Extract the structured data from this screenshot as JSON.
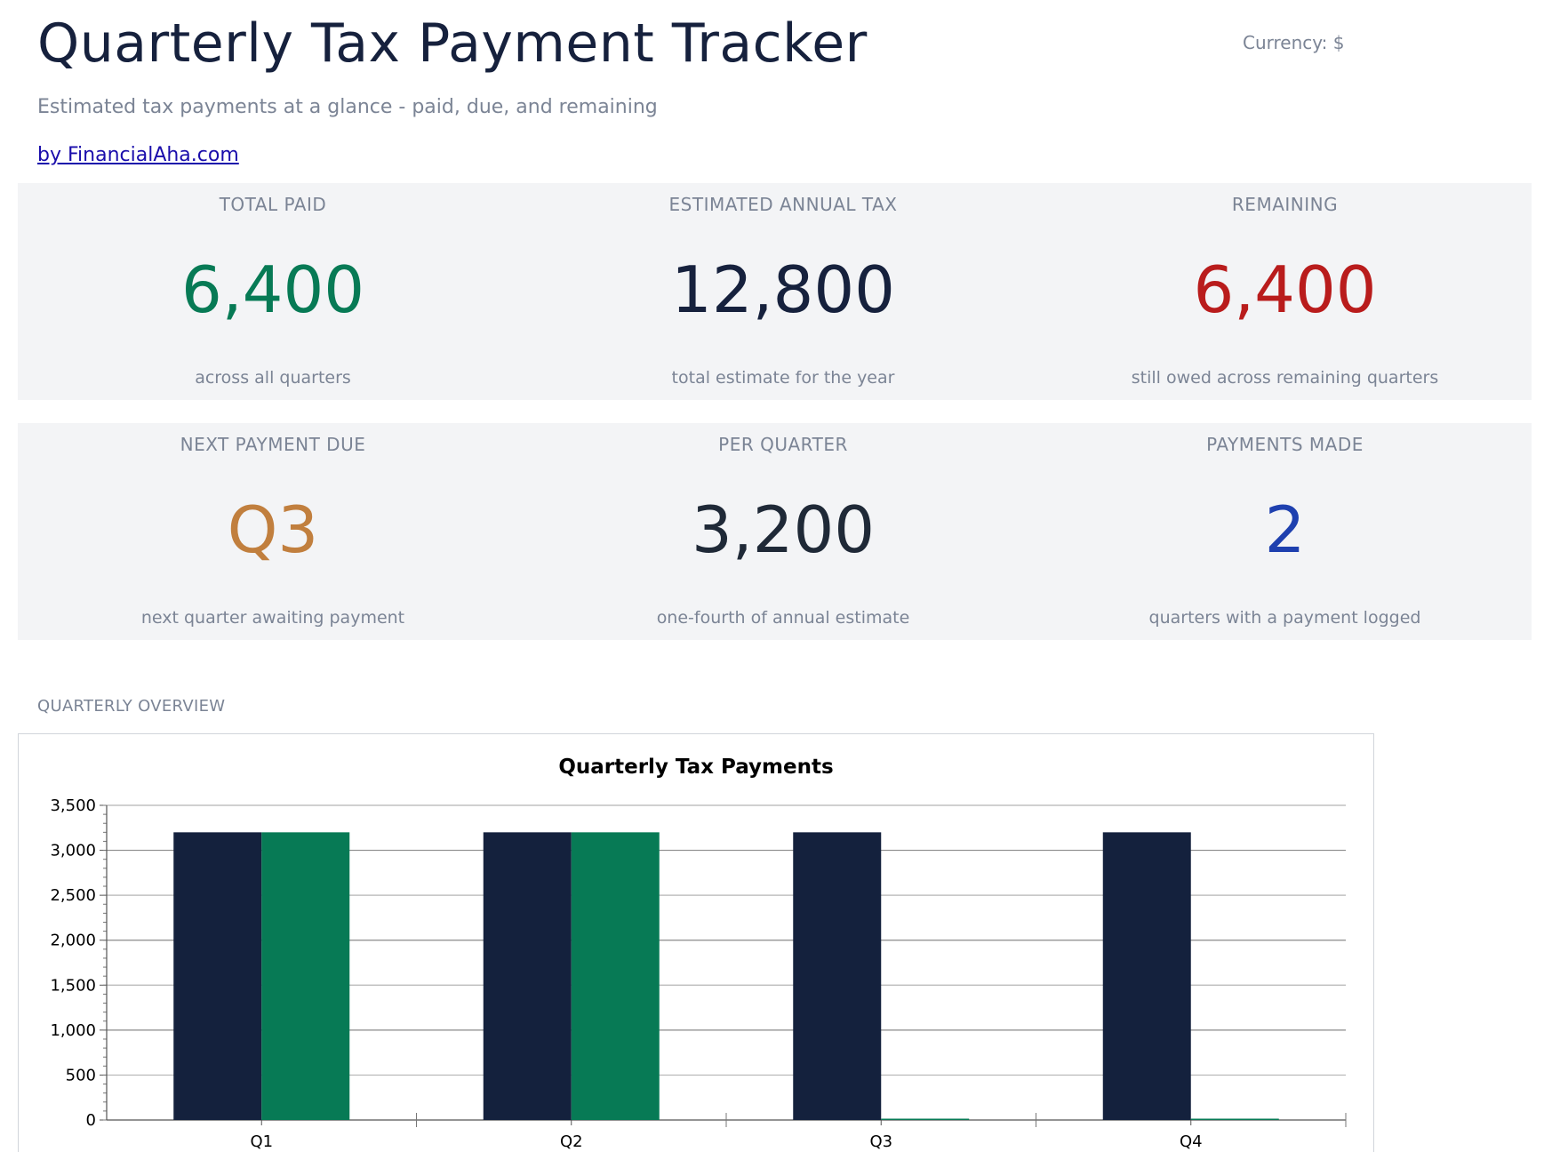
{
  "header": {
    "title": "Quarterly Tax Payment Tracker",
    "currency": "Currency: $",
    "subtitle": "Estimated tax payments at a glance - paid, due, and remaining",
    "byline": "by FinancialAha.com"
  },
  "kpis": [
    {
      "label": "TOTAL PAID",
      "value": "6,400",
      "sub": "across all quarters",
      "color": "#077a55"
    },
    {
      "label": "ESTIMATED ANNUAL TAX",
      "value": "12,800",
      "sub": "total estimate for the year",
      "color": "#16213d"
    },
    {
      "label": "REMAINING",
      "value": "6,400",
      "sub": "still owed across remaining quarters",
      "color": "#b91c1c"
    },
    {
      "label": "NEXT PAYMENT DUE",
      "value": "Q3",
      "sub": "next quarter awaiting payment",
      "color": "#c17f3e"
    },
    {
      "label": "PER QUARTER",
      "value": "3,200",
      "sub": "one-fourth of annual estimate",
      "color": "#1f2937"
    },
    {
      "label": "PAYMENTS MADE",
      "value": "2",
      "sub": "quarters with a payment logged",
      "color": "#1e40af"
    }
  ],
  "section": {
    "label": "QUARTERLY OVERVIEW"
  },
  "chart_data": {
    "type": "bar",
    "title": "Quarterly Tax Payments",
    "categories": [
      "Q1",
      "Q2",
      "Q3",
      "Q4"
    ],
    "series": [
      {
        "values": [
          3200,
          3200,
          3200,
          3200
        ],
        "color": "#14213d"
      },
      {
        "values": [
          3200,
          3200,
          0,
          0
        ],
        "color": "#077a55"
      }
    ],
    "ylim": [
      0,
      3500
    ],
    "yticks": [
      0,
      500,
      1000,
      1500,
      2000,
      2500,
      3000,
      3500
    ],
    "ytick_labels": [
      "0",
      "500",
      "1,000",
      "1,500",
      "2,000",
      "2,500",
      "3,000",
      "3,500"
    ],
    "grid": true,
    "legend": "none"
  }
}
